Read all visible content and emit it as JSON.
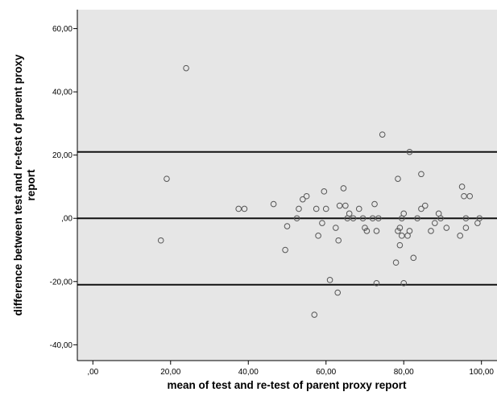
{
  "chart_data": {
    "type": "scatter",
    "xlabel": "mean of test and re-test of parent proxy report",
    "ylabel_lines": [
      "difference between test and re-test of parent proxy",
      "report"
    ],
    "xlim": [
      -4,
      104
    ],
    "ylim": [
      -45,
      66
    ],
    "x_ticks": [
      0,
      20,
      40,
      60,
      80,
      100
    ],
    "x_tick_labels": [
      ",00",
      "20,00",
      "40,00",
      "60,00",
      "80,00",
      "100,00"
    ],
    "y_ticks": [
      60,
      40,
      20,
      0,
      -20,
      -40
    ],
    "y_tick_labels": [
      "60,00",
      "40,00",
      "20,00",
      ",00",
      "-20,00",
      "-40,00"
    ],
    "reference_lines": [
      21,
      0,
      -21
    ],
    "grid": false,
    "colors": {
      "plot_background": "#e6e6e6",
      "marker_stroke": "#555555",
      "reference_line": "#111111"
    },
    "points": [
      {
        "x": 17.5,
        "y": -7
      },
      {
        "x": 19,
        "y": 12.5
      },
      {
        "x": 24,
        "y": 47.5
      },
      {
        "x": 37.5,
        "y": 3
      },
      {
        "x": 39,
        "y": 3
      },
      {
        "x": 46.5,
        "y": 4.5
      },
      {
        "x": 49.5,
        "y": -10
      },
      {
        "x": 50,
        "y": -2.5
      },
      {
        "x": 52.5,
        "y": 0
      },
      {
        "x": 53,
        "y": 3
      },
      {
        "x": 54,
        "y": 6
      },
      {
        "x": 55,
        "y": 7
      },
      {
        "x": 57,
        "y": -30.5
      },
      {
        "x": 57.5,
        "y": 3
      },
      {
        "x": 58,
        "y": -5.5
      },
      {
        "x": 59,
        "y": -1.5
      },
      {
        "x": 59.5,
        "y": 8.5
      },
      {
        "x": 60,
        "y": 3
      },
      {
        "x": 61,
        "y": -19.5
      },
      {
        "x": 62.5,
        "y": -3
      },
      {
        "x": 63,
        "y": -23.5
      },
      {
        "x": 63.2,
        "y": -7
      },
      {
        "x": 63.5,
        "y": 4
      },
      {
        "x": 64.5,
        "y": 9.5
      },
      {
        "x": 65,
        "y": 4
      },
      {
        "x": 65.5,
        "y": 0
      },
      {
        "x": 66,
        "y": 1.5
      },
      {
        "x": 67,
        "y": 0
      },
      {
        "x": 68.5,
        "y": 3
      },
      {
        "x": 69.5,
        "y": 0
      },
      {
        "x": 70,
        "y": -3
      },
      {
        "x": 70.5,
        "y": -4
      },
      {
        "x": 72,
        "y": 0
      },
      {
        "x": 72.5,
        "y": 4.5
      },
      {
        "x": 73,
        "y": -4
      },
      {
        "x": 73,
        "y": -20.5
      },
      {
        "x": 73.5,
        "y": 0
      },
      {
        "x": 74.5,
        "y": 26.5
      },
      {
        "x": 78,
        "y": -14
      },
      {
        "x": 78.5,
        "y": 12.5
      },
      {
        "x": 78.5,
        "y": -4
      },
      {
        "x": 79,
        "y": -8.5
      },
      {
        "x": 79,
        "y": -3
      },
      {
        "x": 79.5,
        "y": 0
      },
      {
        "x": 79.5,
        "y": -5.5
      },
      {
        "x": 80,
        "y": 1.5
      },
      {
        "x": 80,
        "y": -20.5
      },
      {
        "x": 81,
        "y": -5.5
      },
      {
        "x": 81.5,
        "y": 21
      },
      {
        "x": 81.5,
        "y": -4
      },
      {
        "x": 82.5,
        "y": -12.5
      },
      {
        "x": 83.5,
        "y": 0
      },
      {
        "x": 84.5,
        "y": 14
      },
      {
        "x": 84.5,
        "y": 3
      },
      {
        "x": 85.5,
        "y": 4
      },
      {
        "x": 87,
        "y": -4
      },
      {
        "x": 88,
        "y": -1.5
      },
      {
        "x": 89,
        "y": 1.5
      },
      {
        "x": 89.5,
        "y": 0
      },
      {
        "x": 91,
        "y": -3
      },
      {
        "x": 94.5,
        "y": -5.5
      },
      {
        "x": 95,
        "y": 10
      },
      {
        "x": 95.5,
        "y": 7
      },
      {
        "x": 96,
        "y": 0
      },
      {
        "x": 96,
        "y": -3
      },
      {
        "x": 97,
        "y": 7
      },
      {
        "x": 99,
        "y": -1.5
      },
      {
        "x": 99.5,
        "y": 0
      }
    ]
  }
}
